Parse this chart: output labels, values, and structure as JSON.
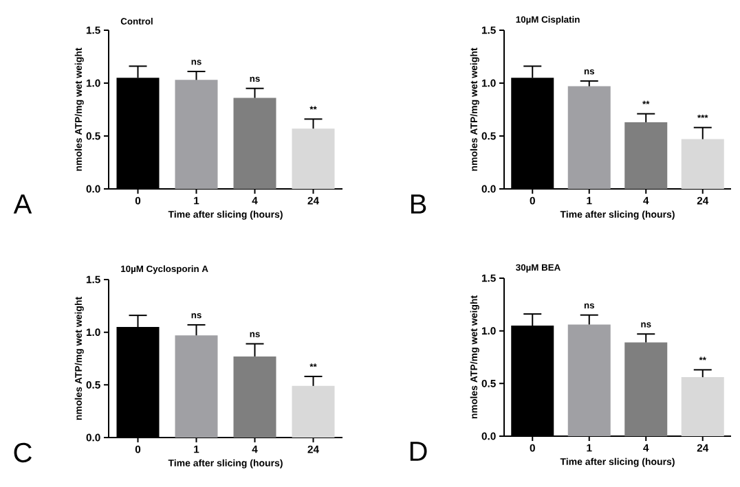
{
  "chart_data": [
    {
      "type": "bar",
      "title": "Control",
      "xlabel": "Time after slicing (hours)",
      "ylabel": "nmoles ATP/mg wet weight",
      "categories": [
        "0",
        "1",
        "4",
        "24"
      ],
      "values": [
        1.05,
        1.03,
        0.86,
        0.57
      ],
      "errors": [
        [
          1.05,
          1.16
        ],
        [
          1.03,
          1.11
        ],
        [
          0.86,
          0.95
        ],
        [
          0.57,
          0.66
        ]
      ],
      "value_labels": [
        null,
        "ns",
        "ns",
        "**"
      ],
      "colors": [
        "#000000",
        "#a0a0a4",
        "#7f7f7f",
        "#d9d9d9"
      ],
      "ylim": [
        0,
        1.5
      ],
      "yticks": [
        {
          "value": 0,
          "label": "0.0"
        },
        {
          "value": 0.5,
          "label": "0.5"
        },
        {
          "value": 1,
          "label": "1.0"
        },
        {
          "value": 1.5,
          "label": "1.5"
        }
      ],
      "annotations": [
        "A"
      ]
    },
    {
      "type": "bar",
      "title": "10µM Cisplatin",
      "xlabel": "Time after slicing (hours)",
      "ylabel": "nmoles ATP/mg wet weight",
      "categories": [
        "0",
        "1",
        "4",
        "24"
      ],
      "values": [
        1.05,
        0.97,
        0.63,
        0.47
      ],
      "errors": [
        [
          1.05,
          1.16
        ],
        [
          0.97,
          1.02
        ],
        [
          0.63,
          0.71
        ],
        [
          0.47,
          0.58
        ]
      ],
      "value_labels": [
        null,
        "ns",
        "**",
        "***"
      ],
      "colors": [
        "#000000",
        "#a0a0a4",
        "#7f7f7f",
        "#d9d9d9"
      ],
      "ylim": [
        0,
        1.5
      ],
      "yticks": [
        {
          "value": 0,
          "label": "0.0"
        },
        {
          "value": 0.5,
          "label": "0.5"
        },
        {
          "value": 1,
          "label": "1.0"
        },
        {
          "value": 1.5,
          "label": "1.5"
        }
      ],
      "annotations": [
        "B"
      ]
    },
    {
      "type": "bar",
      "title": "10µM Cyclosporin  A",
      "xlabel": "Time after slicing (hours)",
      "ylabel": "nmoles ATP/mg wet weight",
      "categories": [
        "0",
        "1",
        "4",
        "24"
      ],
      "values": [
        1.05,
        0.97,
        0.77,
        0.49
      ],
      "errors": [
        [
          1.05,
          1.16
        ],
        [
          0.97,
          1.07
        ],
        [
          0.77,
          0.89
        ],
        [
          0.49,
          0.58
        ]
      ],
      "value_labels": [
        null,
        "ns",
        "ns",
        "**"
      ],
      "colors": [
        "#000000",
        "#a0a0a4",
        "#7f7f7f",
        "#d9d9d9"
      ],
      "ylim": [
        0,
        1.5
      ],
      "yticks": [
        {
          "value": 0,
          "label": "0.0"
        },
        {
          "value": 0.5,
          "label": "0.5"
        },
        {
          "value": 1,
          "label": "1.0"
        },
        {
          "value": 1.5,
          "label": "1.5"
        }
      ],
      "annotations": [
        "C"
      ]
    },
    {
      "type": "bar",
      "title": "30µM BEA",
      "xlabel": "Time after slicing (hours)",
      "ylabel": "nmoles ATP/mg wet weight",
      "categories": [
        "0",
        "1",
        "4",
        "24"
      ],
      "values": [
        1.05,
        1.06,
        0.89,
        0.56
      ],
      "errors": [
        [
          1.05,
          1.16
        ],
        [
          1.06,
          1.15
        ],
        [
          0.89,
          0.97
        ],
        [
          0.56,
          0.63
        ]
      ],
      "value_labels": [
        null,
        "ns",
        "ns",
        "**"
      ],
      "colors": [
        "#000000",
        "#a0a0a4",
        "#7f7f7f",
        "#d9d9d9"
      ],
      "ylim": [
        0,
        1.5
      ],
      "yticks": [
        {
          "value": 0,
          "label": "0.0"
        },
        {
          "value": 0.5,
          "label": "0.5"
        },
        {
          "value": 1,
          "label": "1.0"
        },
        {
          "value": 1.5,
          "label": "1.5"
        }
      ],
      "annotations": [
        "D"
      ]
    }
  ]
}
